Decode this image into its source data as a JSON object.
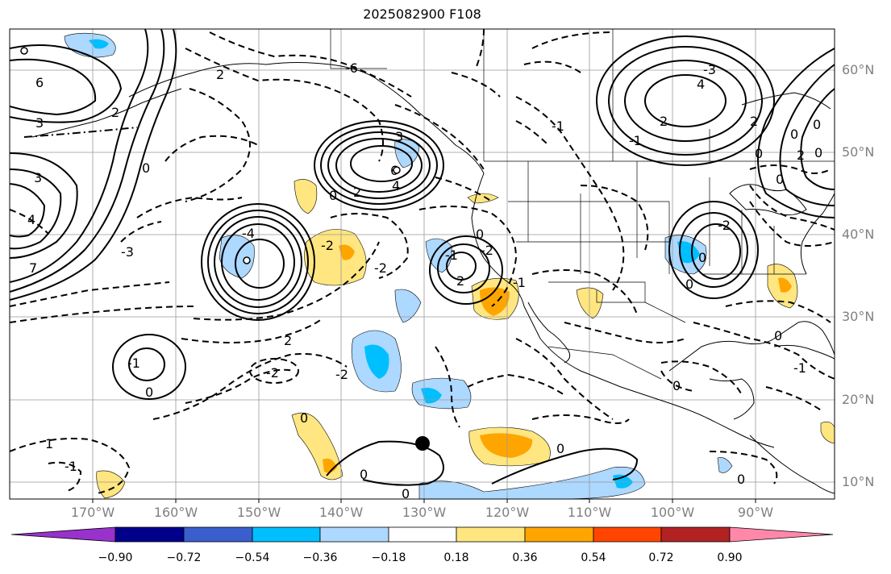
{
  "title": "2025082900 F108",
  "lat_labels": [
    "60°N",
    "50°N",
    "40°N",
    "30°N",
    "20°N",
    "10°N"
  ],
  "lon_labels": [
    "170°W",
    "160°W",
    "150°W",
    "140°W",
    "130°W",
    "120°W",
    "110°W",
    "100°W",
    "90°W"
  ],
  "colorbar": {
    "ticks": [
      "−0.90",
      "−0.72",
      "−0.54",
      "−0.36",
      "−0.18",
      "0.18",
      "0.36",
      "0.54",
      "0.72",
      "0.90"
    ],
    "colors": [
      "#9932cc",
      "#00008b",
      "#3a5fcd",
      "#00bfff",
      "#add8ff",
      "#ffffff",
      "#ffe680",
      "#ffa500",
      "#ff4500",
      "#b22222",
      "#ff88aa"
    ]
  },
  "contour_labels": [
    "6",
    "3",
    "2",
    "0",
    "3",
    "4",
    "7",
    "-6",
    "2",
    "0",
    "-3",
    "2",
    "-2",
    "-4",
    "6",
    "3",
    "4",
    "-2",
    "2",
    "-1",
    "-2",
    "0",
    "-2",
    "0",
    "-1",
    "1",
    "2",
    "-2",
    "0",
    "-1",
    "-1",
    "0",
    "0",
    "0",
    "0",
    "0",
    "0",
    "-1",
    "0",
    "-3",
    "4",
    "2",
    "0",
    "2",
    "-2",
    "0",
    "2",
    "-1",
    "0",
    "-1",
    "0",
    "0",
    "0"
  ]
}
